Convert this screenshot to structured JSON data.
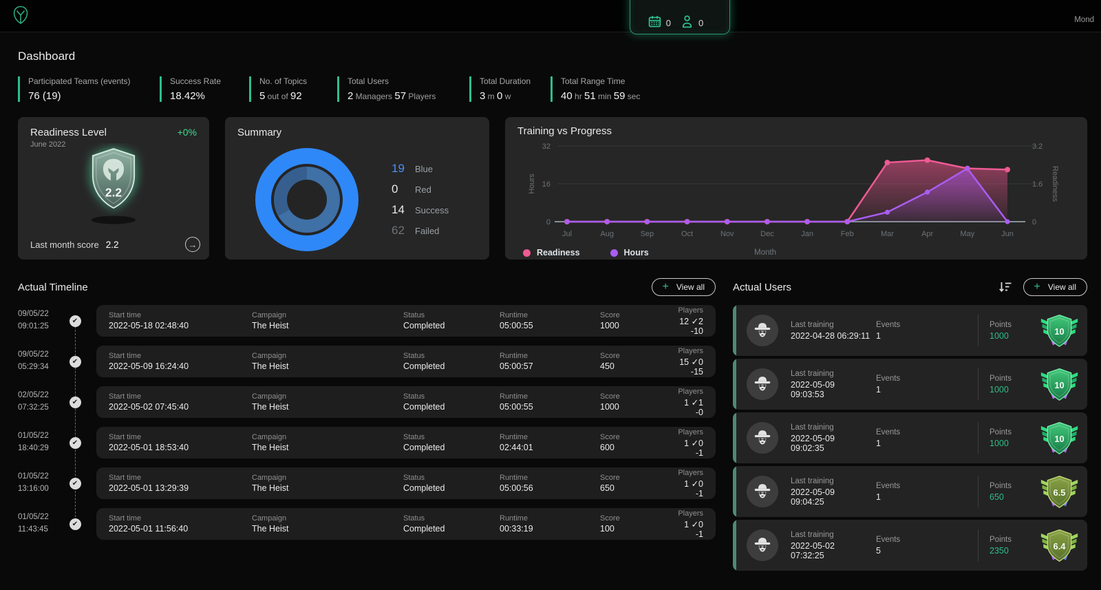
{
  "header": {
    "right_text": "Mond",
    "notification": {
      "calendar_count": "0",
      "user_count": "0"
    }
  },
  "page": {
    "title": "Dashboard"
  },
  "stats": [
    {
      "label": "Participated Teams (events)",
      "parts": [
        {
          "t": "76 (19)",
          "s": 1
        }
      ]
    },
    {
      "label": "Success Rate",
      "parts": [
        {
          "t": "18.42%",
          "s": 1
        }
      ]
    },
    {
      "label": "No. of Topics",
      "parts": [
        {
          "t": "5",
          "s": 1
        },
        {
          "t": " out of ",
          "s": 0
        },
        {
          "t": "92",
          "s": 1
        }
      ]
    },
    {
      "label": "Total Users",
      "parts": [
        {
          "t": "2",
          "s": 1
        },
        {
          "t": " Managers ",
          "s": 0
        },
        {
          "t": "57",
          "s": 1
        },
        {
          "t": " Players",
          "s": 0
        }
      ]
    },
    {
      "label": "Total Duration",
      "parts": [
        {
          "t": "3",
          "s": 1
        },
        {
          "t": " m ",
          "s": 0
        },
        {
          "t": "0",
          "s": 1
        },
        {
          "t": " w",
          "s": 0
        }
      ]
    },
    {
      "label": "Total Range Time",
      "parts": [
        {
          "t": "40",
          "s": 1
        },
        {
          "t": " hr ",
          "s": 0
        },
        {
          "t": "51",
          "s": 1
        },
        {
          "t": " min ",
          "s": 0
        },
        {
          "t": "59",
          "s": 1
        },
        {
          "t": " sec",
          "s": 0
        }
      ]
    }
  ],
  "readiness": {
    "title": "Readiness Level",
    "delta": "+0%",
    "subtitle": "June 2022",
    "shield_score": "2.2",
    "footer_label": "Last month score",
    "footer_value": "2.2"
  },
  "summary": {
    "title": "Summary",
    "legend": [
      {
        "value": "19",
        "label": "Blue",
        "value_color": "#4a90f8"
      },
      {
        "value": "0",
        "label": "Red",
        "value_color": "#e8e8e8"
      },
      {
        "value": "14",
        "label": "Success",
        "value_color": "#e8e8e8"
      },
      {
        "value": "62",
        "label": "Failed",
        "value_color": "#6e7277"
      }
    ]
  },
  "training": {
    "title": "Training vs Progress"
  },
  "chart_data": [
    {
      "type": "donut",
      "title": "Summary",
      "legend_values": {
        "Blue": 19,
        "Red": 0,
        "Success": 14,
        "Failed": 62
      },
      "outer_segments": [
        {
          "label": "Blue",
          "value": 19,
          "color": "#2f88f8"
        },
        {
          "label": "Red",
          "value": 0,
          "color": "#e5484d"
        }
      ],
      "inner_segments": [
        {
          "label": "inner-main",
          "value": 240,
          "color": "#3f70a6"
        },
        {
          "label": "inner-alt",
          "value": 120,
          "color": "#365f90"
        }
      ]
    },
    {
      "type": "line",
      "title": "Training vs Progress",
      "x": [
        "Jul",
        "Aug",
        "Sep",
        "Oct",
        "Nov",
        "Dec",
        "Jan",
        "Feb",
        "Mar",
        "Apr",
        "May",
        "Jun"
      ],
      "xlabel": "Month",
      "series": [
        {
          "name": "Readiness",
          "axis": "right",
          "color": "#ee5a94",
          "values": [
            0,
            0,
            0,
            0,
            0,
            0,
            0,
            0,
            2.5,
            2.6,
            2.25,
            2.2
          ]
        },
        {
          "name": "Hours",
          "axis": "left",
          "color": "#a95df2",
          "values": [
            0,
            0,
            0,
            0,
            0,
            0,
            0,
            0,
            4,
            12.5,
            22.5,
            0
          ]
        }
      ],
      "left_axis": {
        "label": "Hours",
        "ticks": [
          0,
          16,
          32
        ],
        "max": 32
      },
      "right_axis": {
        "label": "Readiness",
        "ticks": [
          0,
          1.6,
          3.2
        ],
        "max": 3.2
      },
      "legend_position": "bottom-left",
      "grid": true
    }
  ],
  "timeline": {
    "title": "Actual Timeline",
    "view_all_label": "View all",
    "headers": {
      "start": "Start time",
      "campaign": "Campaign",
      "status": "Status",
      "runtime": "Runtime",
      "score": "Score",
      "players": "Players"
    },
    "entries": [
      {
        "date": "09/05/22",
        "time": "09:01:25",
        "start": "2022-05-18 02:48:40",
        "campaign": "The Heist",
        "status": "Completed",
        "runtime": "05:00:55",
        "score": "1000",
        "players": "12 ✓2 -10"
      },
      {
        "date": "09/05/22",
        "time": "05:29:34",
        "start": "2022-05-09 16:24:40",
        "campaign": "The Heist",
        "status": "Completed",
        "runtime": "05:00:57",
        "score": "450",
        "players": "15 ✓0 -15"
      },
      {
        "date": "02/05/22",
        "time": "07:32:25",
        "start": "2022-05-02 07:45:40",
        "campaign": "The Heist",
        "status": "Completed",
        "runtime": "05:00:55",
        "score": "1000",
        "players": "1 ✓1 -0"
      },
      {
        "date": "01/05/22",
        "time": "18:40:29",
        "start": "2022-05-01 18:53:40",
        "campaign": "The Heist",
        "status": "Completed",
        "runtime": "02:44:01",
        "score": "600",
        "players": "1 ✓0 -1"
      },
      {
        "date": "01/05/22",
        "time": "13:16:00",
        "start": "2022-05-01 13:29:39",
        "campaign": "The Heist",
        "status": "Completed",
        "runtime": "05:00:56",
        "score": "650",
        "players": "1 ✓0 -1"
      },
      {
        "date": "01/05/22",
        "time": "11:43:45",
        "start": "2022-05-01 11:56:40",
        "campaign": "The Heist",
        "status": "Completed",
        "runtime": "00:33:19",
        "score": "100",
        "players": "1 ✓0 -1"
      }
    ]
  },
  "users": {
    "title": "Actual Users",
    "view_all_label": "View all",
    "labels": {
      "last_training": "Last training",
      "events": "Events",
      "points": "Points"
    },
    "rows": [
      {
        "last_training": "2022-04-28 06:29:11",
        "events": "1",
        "points": "1000",
        "badge": "10",
        "theme": "green"
      },
      {
        "last_training": "2022-05-09 09:03:53",
        "events": "1",
        "points": "1000",
        "badge": "10",
        "theme": "green"
      },
      {
        "last_training": "2022-05-09 09:02:35",
        "events": "1",
        "points": "1000",
        "badge": "10",
        "theme": "green"
      },
      {
        "last_training": "2022-05-09 09:04:25",
        "events": "1",
        "points": "650",
        "badge": "6.5",
        "theme": "olive"
      },
      {
        "last_training": "2022-05-02 07:32:25",
        "events": "5",
        "points": "2350",
        "badge": "6.4",
        "theme": "olive"
      }
    ]
  },
  "badge_themes": {
    "green": {
      "shield1": "#41c97a",
      "shield2": "#177a46",
      "stroke": "#7cf0b0",
      "wing": "#2edc7f",
      "wing_dark": "#1fae66",
      "ribbon_l": "#c26af0",
      "ribbon_r": "#b45ef0"
    },
    "olive": {
      "shield1": "#8aa344",
      "shield2": "#55702a",
      "stroke": "#c6dd7e",
      "wing": "#9fd45f",
      "wing_dark": "#7fb23f",
      "ribbon_l": "#a55ef0",
      "ribbon_r": "#6f7ff5"
    }
  },
  "colors": {
    "accent_green": "#2dbe8d",
    "points_green": "#2ebd8a"
  }
}
